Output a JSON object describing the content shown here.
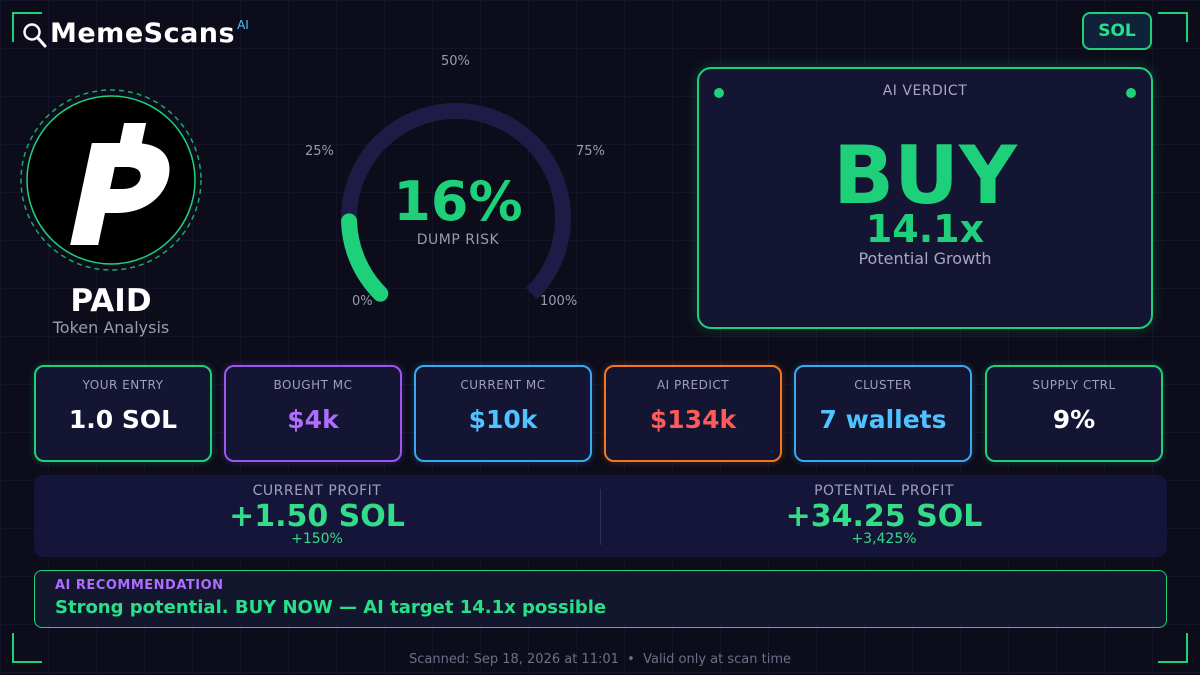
{
  "brand": {
    "name": "MemeScans",
    "superscript": "AI",
    "icon": "magnifier-icon"
  },
  "chain_badge": {
    "label": "SOL",
    "color": "#29e08a"
  },
  "token": {
    "name": "PAID",
    "subtitle": "Token Analysis",
    "logo_icon": "paid-token-logo"
  },
  "dump_risk": {
    "value_text": "16%",
    "value": 16,
    "caption": "DUMP RISK",
    "ticks": {
      "t0": "0%",
      "t25": "25%",
      "t50": "50%",
      "t75": "75%",
      "t100": "100%"
    },
    "color": "#1fd07a"
  },
  "verdict": {
    "label": "AI VERDICT",
    "word": "BUY",
    "multiplier": "14.1x",
    "caption": "Potential Growth",
    "color": "#1fd07a"
  },
  "stats": [
    {
      "label": "YOUR ENTRY",
      "value": "1.0 SOL",
      "border": "#1fd07a",
      "color": "#ffffff"
    },
    {
      "label": "BOUGHT MC",
      "value": "$4k",
      "border": "#9b55f0",
      "color": "#b06bff"
    },
    {
      "label": "CURRENT MC",
      "value": "$10k",
      "border": "#3aa8f0",
      "color": "#4fc3ff"
    },
    {
      "label": "AI PREDICT",
      "value": "$134k",
      "border": "#f07820",
      "color": "#ff5a5a"
    },
    {
      "label": "CLUSTER",
      "value": "7 wallets",
      "border": "#3aa8f0",
      "color": "#4fc3ff"
    },
    {
      "label": "SUPPLY CTRL",
      "value": "9%",
      "border": "#1fd07a",
      "color": "#ffffff"
    }
  ],
  "profit": {
    "current": {
      "label": "CURRENT PROFIT",
      "value": "+1.50 SOL",
      "pct": "+150%"
    },
    "potential": {
      "label": "POTENTIAL PROFIT",
      "value": "+34.25 SOL",
      "pct": "+3,425%"
    }
  },
  "recommendation": {
    "label": "AI RECOMMENDATION",
    "text": "Strong potential. BUY NOW — AI target 14.1x possible"
  },
  "footer": "Scanned: Sep 18, 2026 at 11:01  •  Valid only at scan time"
}
